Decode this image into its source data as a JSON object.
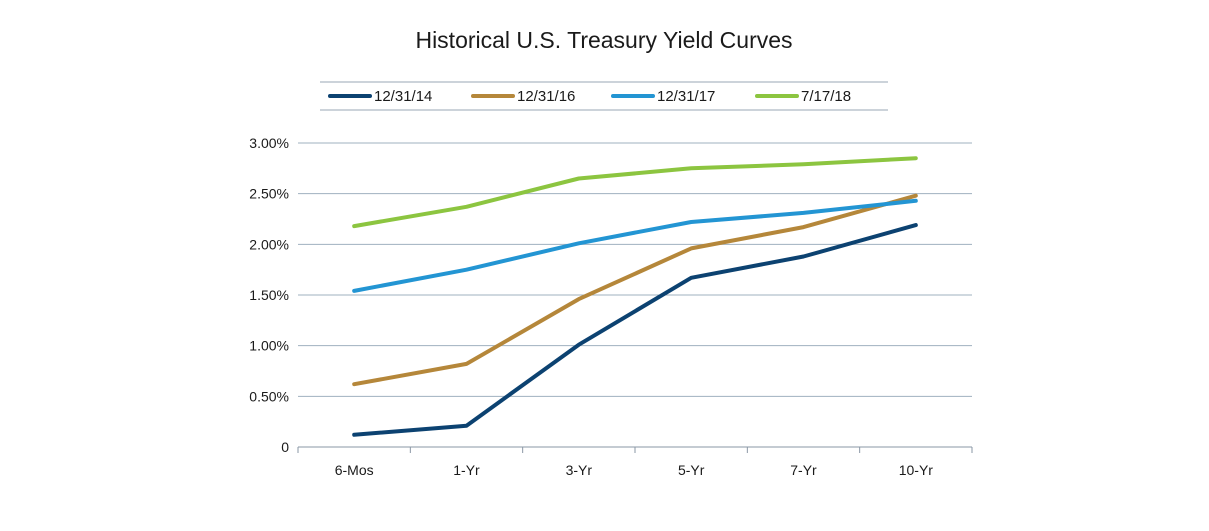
{
  "chart_data": {
    "type": "line",
    "title": "Historical U.S. Treasury Yield Curves",
    "xlabel": "",
    "ylabel": "",
    "categories": [
      "6-Mos",
      "1-Yr",
      "3-Yr",
      "5-Yr",
      "7-Yr",
      "10-Yr"
    ],
    "y_ticks": [
      "0",
      "0.50%",
      "1.00%",
      "1.50%",
      "2.00%",
      "2.50%",
      "3.00%"
    ],
    "ylim": [
      0,
      3.0
    ],
    "grid": true,
    "legend_position": "top",
    "series": [
      {
        "name": "12/31/14",
        "color": "#0c4271",
        "values": [
          0.12,
          0.21,
          1.01,
          1.67,
          1.88,
          2.19
        ]
      },
      {
        "name": "12/31/16",
        "color": "#b5873a",
        "values": [
          0.62,
          0.82,
          1.46,
          1.96,
          2.17,
          2.48
        ]
      },
      {
        "name": "12/31/17",
        "color": "#2395d3",
        "values": [
          1.54,
          1.75,
          2.01,
          2.22,
          2.31,
          2.43
        ]
      },
      {
        "name": "7/17/18",
        "color": "#8cc540",
        "values": [
          2.18,
          2.37,
          2.65,
          2.75,
          2.79,
          2.85
        ]
      }
    ]
  }
}
